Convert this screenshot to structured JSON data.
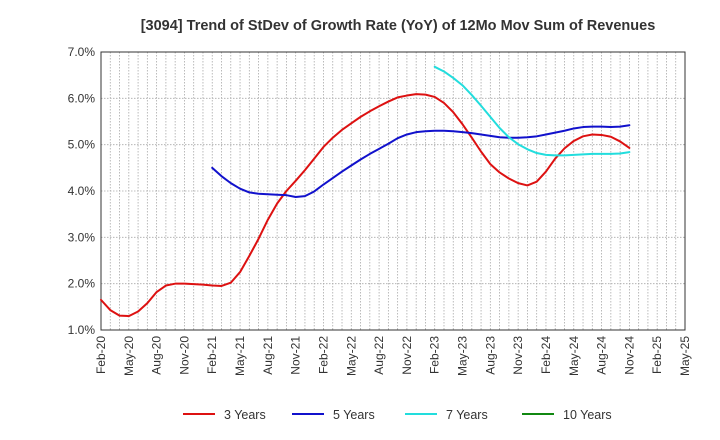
{
  "chart_data": {
    "type": "line",
    "title": "[3094]  Trend of StDev of Growth Rate (YoY) of 12Mo Mov Sum of Revenues",
    "xlabel": "",
    "ylabel": "",
    "ylim": [
      1.0,
      7.0
    ],
    "y_ticks": [
      "1.0%",
      "2.0%",
      "3.0%",
      "4.0%",
      "5.0%",
      "6.0%",
      "7.0%"
    ],
    "x_ticks": [
      "Feb-20",
      "May-20",
      "Aug-20",
      "Nov-20",
      "Feb-21",
      "May-21",
      "Aug-21",
      "Nov-21",
      "Feb-22",
      "May-22",
      "Aug-22",
      "Nov-22",
      "Feb-23",
      "May-23",
      "Aug-23",
      "Nov-23",
      "Feb-24",
      "May-24",
      "Aug-24",
      "Nov-24",
      "Feb-25",
      "May-25"
    ],
    "x_start": "Feb-20",
    "grid": true,
    "legend_position": "bottom",
    "series": [
      {
        "name": "3 Years",
        "color": "#dd1111",
        "start_index": 0,
        "values": [
          1.65,
          1.43,
          1.31,
          1.3,
          1.4,
          1.58,
          1.82,
          1.96,
          2.0,
          2.0,
          1.99,
          1.98,
          1.96,
          1.95,
          2.02,
          2.25,
          2.6,
          2.97,
          3.38,
          3.73,
          4.0,
          4.22,
          4.45,
          4.7,
          4.95,
          5.15,
          5.32,
          5.46,
          5.6,
          5.72,
          5.83,
          5.93,
          6.02,
          6.06,
          6.09,
          6.08,
          6.03,
          5.9,
          5.7,
          5.44,
          5.15,
          4.85,
          4.58,
          4.4,
          4.27,
          4.17,
          4.12,
          4.2,
          4.42,
          4.7,
          4.92,
          5.08,
          5.18,
          5.22,
          5.21,
          5.17,
          5.07,
          4.93
        ]
      },
      {
        "name": "5 Years",
        "color": "#1111cc",
        "start_index": 12,
        "values": [
          4.5,
          4.32,
          4.17,
          4.05,
          3.97,
          3.94,
          3.93,
          3.92,
          3.91,
          3.87,
          3.89,
          3.99,
          4.14,
          4.28,
          4.42,
          4.55,
          4.68,
          4.8,
          4.91,
          5.02,
          5.14,
          5.22,
          5.27,
          5.29,
          5.3,
          5.3,
          5.29,
          5.27,
          5.25,
          5.22,
          5.19,
          5.16,
          5.15,
          5.15,
          5.16,
          5.18,
          5.22,
          5.26,
          5.3,
          5.35,
          5.38,
          5.39,
          5.39,
          5.38,
          5.39,
          5.42
        ]
      },
      {
        "name": "7 Years",
        "color": "#22dddd",
        "start_index": 36,
        "values": [
          6.68,
          6.58,
          6.44,
          6.28,
          6.07,
          5.84,
          5.6,
          5.36,
          5.16,
          5.01,
          4.9,
          4.82,
          4.78,
          4.77,
          4.77,
          4.78,
          4.79,
          4.8,
          4.8,
          4.8,
          4.81,
          4.84
        ]
      },
      {
        "name": "10 Years",
        "color": "#118811",
        "start_index": 0,
        "values": []
      }
    ]
  }
}
